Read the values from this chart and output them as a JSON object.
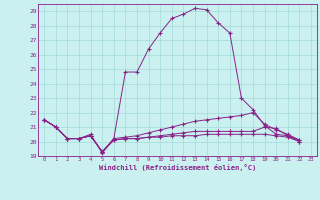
{
  "xlabel": "Windchill (Refroidissement éolien,°C)",
  "bg_color": "#caf0f0",
  "line_color": "#882288",
  "grid_color": "#aadddd",
  "xlim": [
    -0.5,
    23.5
  ],
  "ylim": [
    19,
    29.5
  ],
  "yticks": [
    19,
    20,
    21,
    22,
    23,
    24,
    25,
    26,
    27,
    28,
    29
  ],
  "xticks": [
    0,
    1,
    2,
    3,
    4,
    5,
    6,
    7,
    8,
    9,
    10,
    11,
    12,
    13,
    14,
    15,
    16,
    17,
    18,
    19,
    20,
    21,
    22,
    23
  ],
  "series": [
    [
      21.5,
      21.0,
      20.2,
      20.2,
      20.5,
      19.2,
      20.2,
      24.8,
      24.8,
      26.4,
      27.5,
      28.5,
      28.8,
      29.2,
      29.1,
      28.2,
      27.5,
      23.0,
      22.2,
      21.1,
      20.5,
      20.4,
      20.1
    ],
    [
      21.5,
      21.0,
      20.2,
      20.2,
      20.4,
      19.3,
      20.2,
      20.3,
      20.4,
      20.6,
      20.8,
      21.0,
      21.2,
      21.4,
      21.5,
      21.6,
      21.7,
      21.8,
      22.0,
      21.2,
      20.8,
      20.5,
      20.1
    ],
    [
      21.5,
      21.0,
      20.2,
      20.2,
      20.4,
      19.3,
      20.1,
      20.2,
      20.2,
      20.3,
      20.4,
      20.5,
      20.6,
      20.7,
      20.7,
      20.7,
      20.7,
      20.7,
      20.7,
      21.0,
      20.9,
      20.4,
      20.0
    ],
    [
      21.5,
      21.0,
      20.2,
      20.2,
      20.4,
      19.3,
      20.1,
      20.2,
      20.2,
      20.3,
      20.3,
      20.4,
      20.4,
      20.4,
      20.5,
      20.5,
      20.5,
      20.5,
      20.5,
      20.5,
      20.4,
      20.3,
      20.0
    ]
  ]
}
